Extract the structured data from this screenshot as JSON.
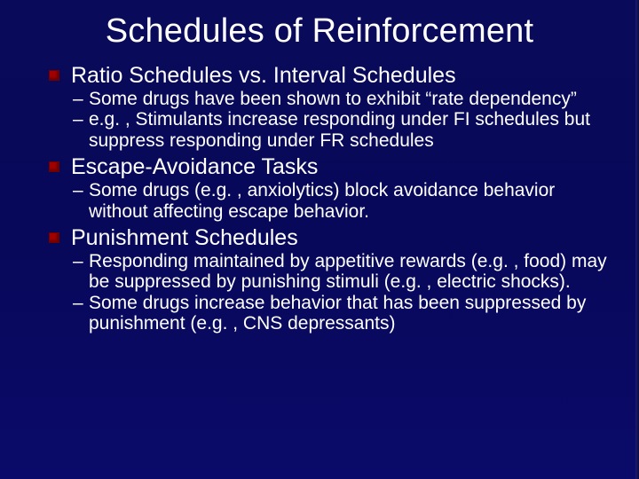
{
  "colors": {
    "background": "#080856",
    "text": "#ffffff",
    "bullet": "#a00000"
  },
  "typography": {
    "title_fontsize": 38,
    "topic_fontsize": 25,
    "sub_fontsize": 21,
    "font_family": "Arial"
  },
  "title": "Schedules of Reinforcement",
  "topics": [
    {
      "heading": "Ratio Schedules vs. Interval Schedules",
      "subs": [
        "Some drugs have been shown to exhibit “rate dependency”",
        "e.g. , Stimulants increase responding under FI schedules but suppress responding under FR schedules"
      ]
    },
    {
      "heading": "Escape-Avoidance Tasks",
      "subs": [
        "Some drugs (e.g. , anxiolytics) block avoidance behavior without affecting escape behavior."
      ]
    },
    {
      "heading": "Punishment Schedules",
      "subs": [
        "Responding maintained by appetitive rewards (e.g. , food) may be suppressed by punishing stimuli (e.g. , electric shocks).",
        "Some drugs increase behavior that has been suppressed by punishment (e.g. , CNS depressants)"
      ]
    }
  ]
}
